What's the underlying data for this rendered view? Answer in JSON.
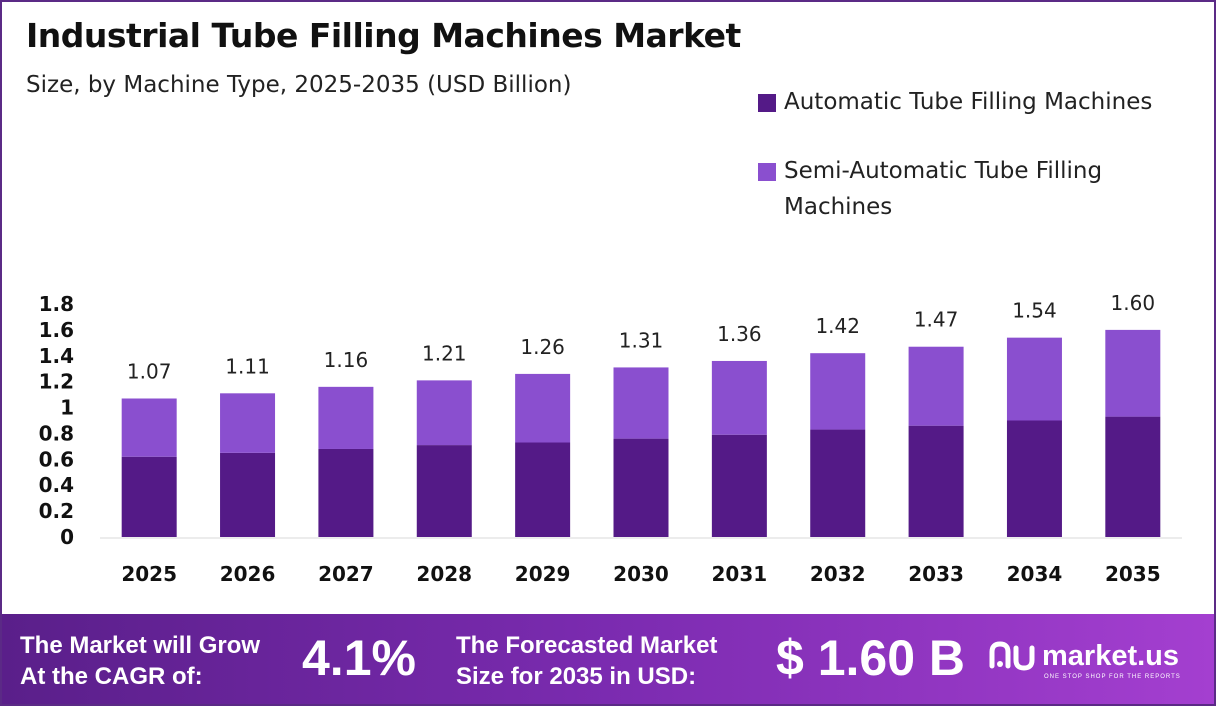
{
  "title": "Industrial Tube Filling Machines Market",
  "subtitle": "Size, by Machine Type, 2025-2035 (USD Billion)",
  "legend": [
    {
      "name": "Automatic Tube Filling Machines",
      "color": "#541a87"
    },
    {
      "name": "Semi-Automatic Tube Filling Machines",
      "color": "#8a4fcf"
    }
  ],
  "chart_data": {
    "type": "bar",
    "stacked": true,
    "categories": [
      "2025",
      "2026",
      "2027",
      "2028",
      "2029",
      "2030",
      "2031",
      "2032",
      "2033",
      "2034",
      "2035"
    ],
    "series": [
      {
        "name": "Automatic Tube Filling Machines",
        "color": "#541a87",
        "values": [
          0.62,
          0.65,
          0.68,
          0.71,
          0.73,
          0.76,
          0.79,
          0.83,
          0.86,
          0.9,
          0.93
        ]
      },
      {
        "name": "Semi-Automatic Tube Filling Machines",
        "color": "#8a4fcf",
        "values": [
          0.45,
          0.46,
          0.48,
          0.5,
          0.53,
          0.55,
          0.57,
          0.59,
          0.61,
          0.64,
          0.67
        ]
      }
    ],
    "totals": [
      "1.07",
      "1.11",
      "1.16",
      "1.21",
      "1.26",
      "1.31",
      "1.36",
      "1.42",
      "1.47",
      "1.54",
      "1.60"
    ],
    "y_ticks": [
      "0",
      "0.2",
      "0.4",
      "0.6",
      "0.8",
      "1",
      "1.2",
      "1.4",
      "1.6",
      "1.8"
    ],
    "ylim": [
      0,
      1.8
    ],
    "grid": false,
    "legend_position": "top-right"
  },
  "footer": {
    "cagr_label_line1": "The Market will Grow",
    "cagr_label_line2": "At the CAGR of:",
    "cagr_value": "4.1%",
    "forecast_label_line1": "The Forecasted Market",
    "forecast_label_line2": "Size for 2035 in USD:",
    "forecast_value": "$ 1.60 B",
    "brand_name": "market.us",
    "brand_tagline": "ONE STOP SHOP FOR THE REPORTS"
  }
}
